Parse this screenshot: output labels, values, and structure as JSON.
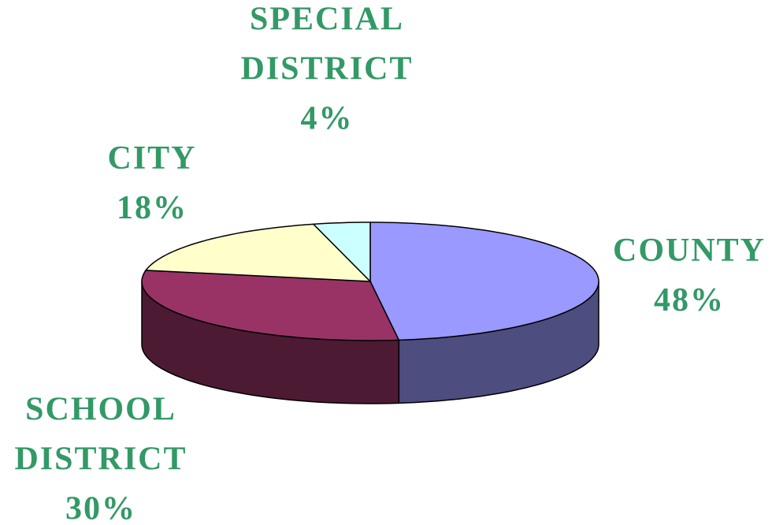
{
  "chart_data": {
    "type": "pie",
    "categories": [
      "COUNTY",
      "SCHOOL DISTRICT",
      "CITY",
      "SPECIAL DISTRICT"
    ],
    "values": [
      48,
      30,
      18,
      4
    ],
    "value_labels": [
      "48%",
      "30%",
      "18%",
      "4%"
    ],
    "colors": [
      "#9999ff",
      "#993366",
      "#ffffcc",
      "#ccffff"
    ],
    "side_colors": [
      "#4d4d80",
      "#4d1a33",
      "#80806a",
      "#6a8080"
    ],
    "label_color": "#339966"
  }
}
